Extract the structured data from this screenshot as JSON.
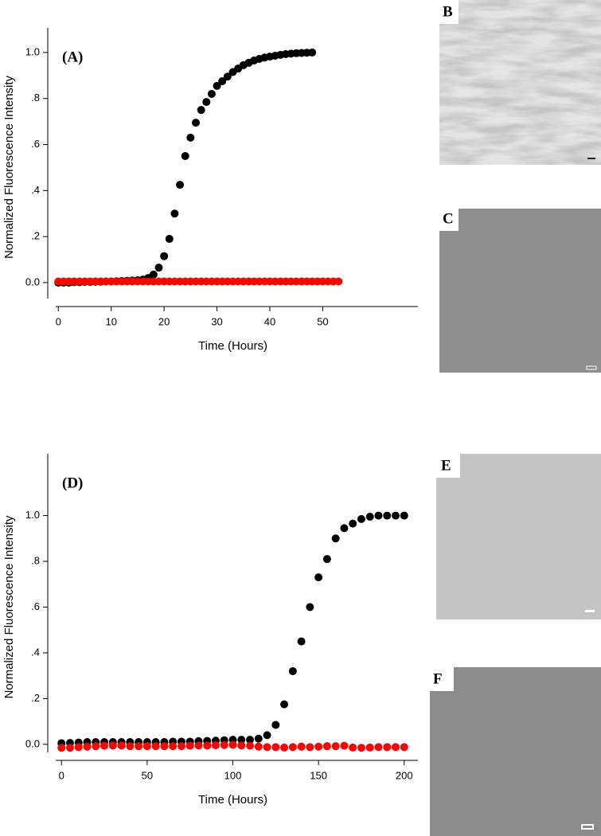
{
  "chart_data": [
    {
      "type": "scatter",
      "annotation": "(A)",
      "xlabel": "Time (Hours)",
      "ylabel": "Normalized Fluorescence Intensity",
      "xlim": [
        -2,
        68
      ],
      "ylim": [
        -0.104,
        1.107
      ],
      "xticks": [
        0,
        10,
        20,
        30,
        40,
        50
      ],
      "yticks": [
        {
          "value": 0,
          "label": "0.0"
        },
        {
          "value": 0.2,
          "label": ".2"
        },
        {
          "value": 0.4,
          "label": ".4"
        },
        {
          "value": 0.6,
          "label": ".6"
        },
        {
          "value": 0.8,
          "label": ".8"
        },
        {
          "value": 1,
          "label": "1.0"
        }
      ],
      "series": [
        {
          "color": "#000000",
          "x": [
            0,
            1,
            2,
            3,
            4,
            5,
            6,
            7,
            8,
            9,
            10,
            11,
            12,
            13,
            14,
            15,
            16,
            17,
            18,
            19,
            20,
            21,
            22,
            23,
            24,
            25,
            26,
            27,
            28,
            29,
            30,
            31,
            32,
            33,
            34,
            35,
            36,
            37,
            38,
            39,
            40,
            41,
            42,
            43,
            44,
            45,
            46,
            47,
            48
          ],
          "values": [
            0,
            0,
            0,
            0.002,
            0.002,
            0.003,
            0.003,
            0.004,
            0.004,
            0.005,
            0.005,
            0.006,
            0.007,
            0.008,
            0.009,
            0.01,
            0.013,
            0.02,
            0.035,
            0.065,
            0.115,
            0.19,
            0.3,
            0.425,
            0.55,
            0.63,
            0.695,
            0.75,
            0.785,
            0.82,
            0.855,
            0.875,
            0.895,
            0.915,
            0.93,
            0.945,
            0.955,
            0.965,
            0.972,
            0.978,
            0.982,
            0.986,
            0.99,
            0.993,
            0.995,
            0.997,
            0.998,
            0.999,
            1.0
          ]
        },
        {
          "color": "#ff0000",
          "x": [
            0,
            1,
            2,
            3,
            4,
            5,
            6,
            7,
            8,
            9,
            10,
            11,
            12,
            13,
            14,
            15,
            16,
            17,
            18,
            19,
            20,
            21,
            22,
            23,
            24,
            25,
            26,
            27,
            28,
            29,
            30,
            31,
            32,
            33,
            34,
            35,
            36,
            37,
            38,
            39,
            40,
            41,
            42,
            43,
            44,
            45,
            46,
            47,
            48,
            49,
            50,
            51,
            52,
            53
          ],
          "values": [
            0.005,
            0.005,
            0.005,
            0.005,
            0.005,
            0.005,
            0.005,
            0.005,
            0.005,
            0.005,
            0.005,
            0.005,
            0.005,
            0.005,
            0.005,
            0.005,
            0.005,
            0.005,
            0.005,
            0.005,
            0.005,
            0.005,
            0.005,
            0.005,
            0.005,
            0.005,
            0.005,
            0.005,
            0.005,
            0.005,
            0.005,
            0.005,
            0.005,
            0.005,
            0.005,
            0.005,
            0.005,
            0.005,
            0.005,
            0.005,
            0.005,
            0.005,
            0.005,
            0.005,
            0.005,
            0.005,
            0.005,
            0.005,
            0.005,
            0.005,
            0.005,
            0.005,
            0.005,
            0.005
          ]
        }
      ]
    },
    {
      "type": "scatter",
      "annotation": "(D)",
      "xlabel": "Time (Hours)",
      "ylabel": "Normalized Fluorescence Intensity",
      "xlim": [
        -8,
        208
      ],
      "ylim": [
        -0.07,
        1.27
      ],
      "xticks": [
        0,
        50,
        100,
        150,
        200
      ],
      "yticks": [
        {
          "value": 0,
          "label": "0.0"
        },
        {
          "value": 0.2,
          "label": ".2"
        },
        {
          "value": 0.4,
          "label": ".4"
        },
        {
          "value": 0.6,
          "label": ".6"
        },
        {
          "value": 0.8,
          "label": ".8"
        },
        {
          "value": 1,
          "label": "1.0"
        }
      ],
      "series": [
        {
          "color": "#000000",
          "x": [
            0,
            5,
            10,
            15,
            20,
            25,
            30,
            35,
            40,
            45,
            50,
            55,
            60,
            65,
            70,
            75,
            80,
            85,
            90,
            95,
            100,
            105,
            110,
            115,
            120,
            125,
            130,
            135,
            140,
            145,
            150,
            155,
            160,
            165,
            170,
            175,
            180,
            185,
            190,
            195,
            200
          ],
          "values": [
            0.005,
            0.006,
            0.008,
            0.01,
            0.01,
            0.01,
            0.01,
            0.01,
            0.01,
            0.01,
            0.01,
            0.01,
            0.01,
            0.012,
            0.012,
            0.012,
            0.014,
            0.015,
            0.016,
            0.018,
            0.02,
            0.02,
            0.02,
            0.025,
            0.04,
            0.085,
            0.175,
            0.32,
            0.45,
            0.6,
            0.73,
            0.81,
            0.9,
            0.945,
            0.965,
            0.985,
            0.995,
            1.0,
            1.0,
            1.0,
            1.0
          ]
        },
        {
          "color": "#ff0000",
          "x": [
            0,
            5,
            10,
            15,
            20,
            25,
            30,
            35,
            40,
            45,
            50,
            55,
            60,
            65,
            70,
            75,
            80,
            85,
            90,
            95,
            100,
            105,
            110,
            115,
            120,
            125,
            130,
            135,
            140,
            145,
            150,
            155,
            160,
            165,
            170,
            175,
            180,
            185,
            190,
            195,
            200
          ],
          "values": [
            -0.015,
            -0.015,
            -0.012,
            -0.01,
            -0.008,
            -0.006,
            -0.005,
            -0.005,
            -0.008,
            -0.008,
            -0.008,
            -0.008,
            -0.008,
            -0.008,
            -0.008,
            -0.006,
            -0.005,
            -0.005,
            -0.004,
            -0.003,
            -0.002,
            -0.005,
            -0.006,
            -0.01,
            -0.012,
            -0.012,
            -0.014,
            -0.012,
            -0.01,
            -0.012,
            -0.01,
            -0.008,
            -0.008,
            -0.006,
            -0.014,
            -0.015,
            -0.014,
            -0.012,
            -0.012,
            -0.012,
            -0.012
          ]
        }
      ]
    }
  ],
  "micrographs": [
    {
      "label": "B"
    },
    {
      "label": "C"
    },
    {
      "label": "E"
    },
    {
      "label": "F"
    }
  ]
}
